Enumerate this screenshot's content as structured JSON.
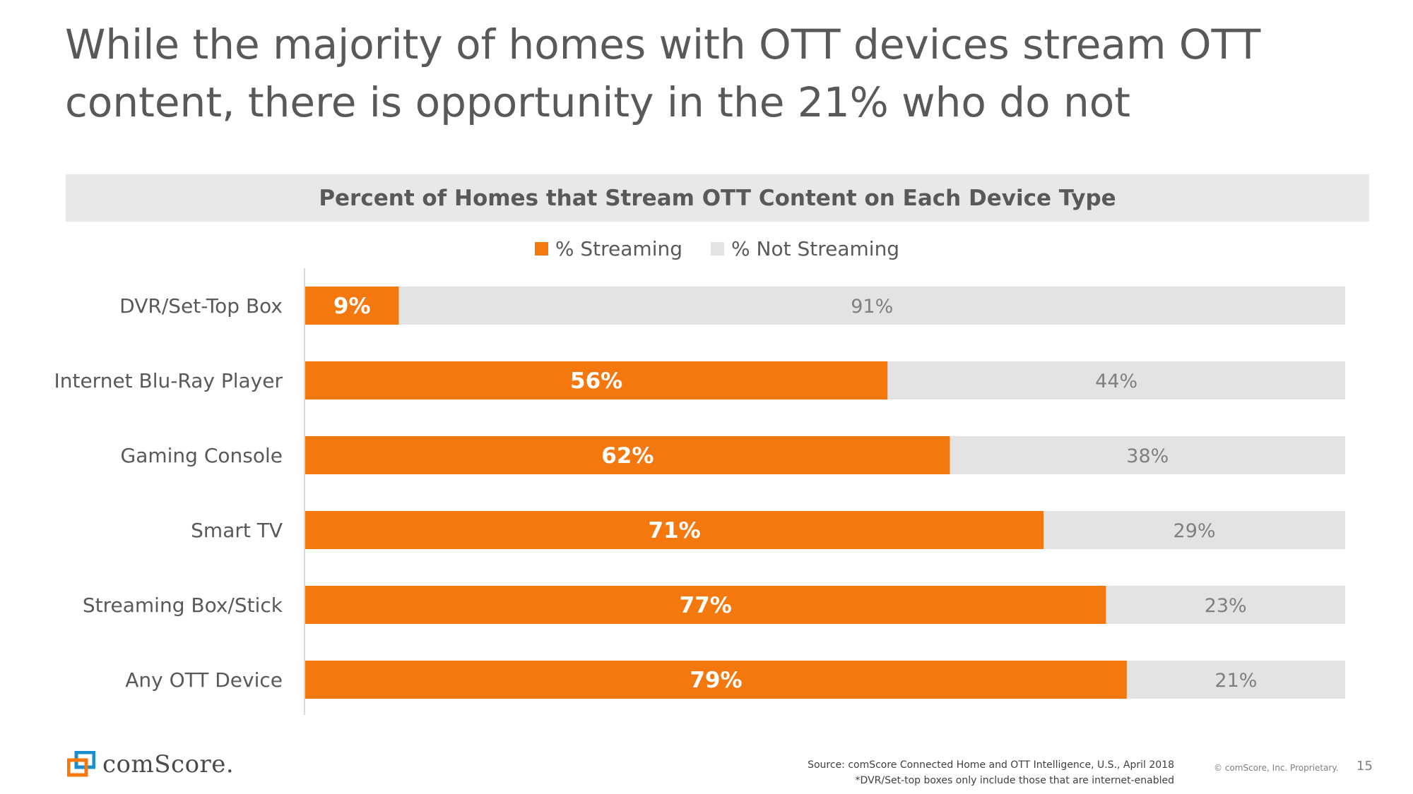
{
  "slide": {
    "title_line1": "While the majority of homes with OTT devices stream OTT",
    "title_line2": "content, there is opportunity in the 21% who do not"
  },
  "chart_data": {
    "type": "bar",
    "orientation": "horizontal",
    "stacked": true,
    "title": "Percent of Homes that Stream OTT Content on Each Device Type",
    "categories": [
      "DVR/Set-Top Box",
      "Internet Blu-Ray Player",
      "Gaming Console",
      "Smart TV",
      "Streaming Box/Stick",
      "Any OTT Device"
    ],
    "series": [
      {
        "name": "% Streaming",
        "color": "#f4780d",
        "values": [
          9,
          56,
          62,
          71,
          77,
          79
        ],
        "labels": [
          "9%",
          "56%",
          "62%",
          "71%",
          "77%",
          "79%"
        ]
      },
      {
        "name": "% Not Streaming",
        "color": "#e3e3e3",
        "values": [
          91,
          44,
          38,
          29,
          23,
          21
        ],
        "labels": [
          "91%",
          "44%",
          "38%",
          "29%",
          "23%",
          "21%"
        ]
      }
    ],
    "xlim": [
      0,
      100
    ],
    "legend_position": "top",
    "grid": false
  },
  "footer": {
    "logo_text": "comScore.",
    "source": "Source: comScore Connected Home and OTT Intelligence, U.S., April 2018",
    "note": "*DVR/Set-top boxes only include those that are internet-enabled",
    "copyright": "© comScore, Inc. Proprietary.",
    "page_number": "15"
  },
  "colors": {
    "accent": "#f4780d",
    "muted": "#e3e3e3",
    "text": "#595959",
    "logo_blue": "#1b8fc9"
  }
}
